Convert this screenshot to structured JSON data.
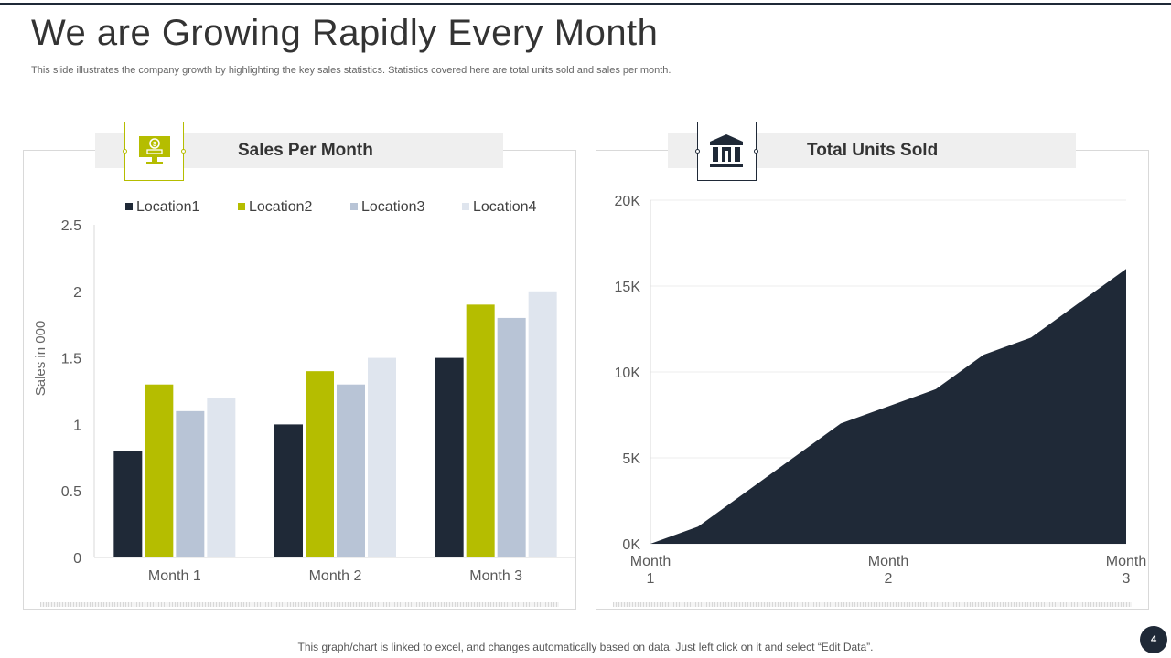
{
  "slide": {
    "title": "We are Growing Rapidly Every Month",
    "subtitle": "This slide illustrates the company growth by highlighting the key sales statistics. Statistics covered here are total units sold and sales per month.",
    "footer": "This graph/chart is linked to excel,  and changes automatically based on data. Just left click on it and select “Edit Data”.",
    "page_number": "4"
  },
  "panels": {
    "left": {
      "header": "Sales Per Month",
      "icon": "monitor-dollar-icon"
    },
    "right": {
      "header": "Total Units Sold",
      "icon": "bank-building-icon"
    }
  },
  "colors": {
    "location1": "#1f2937",
    "location2": "#b5bd00",
    "location3": "#b8c4d6",
    "location4": "#dfe5ee",
    "area": "#1f2937",
    "accent_green": "#b5bd00"
  },
  "chart_data": [
    {
      "type": "bar",
      "title": "Sales Per Month",
      "categories": [
        "Month 1",
        "Month 2",
        "Month 3"
      ],
      "series": [
        {
          "name": "Location1",
          "values": [
            0.8,
            1.0,
            1.5
          ]
        },
        {
          "name": "Location2",
          "values": [
            1.3,
            1.4,
            1.9
          ]
        },
        {
          "name": "Location3",
          "values": [
            1.1,
            1.3,
            1.8
          ]
        },
        {
          "name": "Location4",
          "values": [
            1.2,
            1.5,
            2.0
          ]
        }
      ],
      "xlabel": "",
      "ylabel": "Sales in 000",
      "ylim": [
        0,
        2.5
      ],
      "yticks": [
        "0",
        "0.5",
        "1",
        "1.5",
        "2",
        "2.5"
      ],
      "legend": "top"
    },
    {
      "type": "area",
      "title": "Total Units Sold",
      "x": [
        1,
        1.2,
        1.4,
        1.6,
        1.8,
        2.0,
        2.2,
        2.4,
        2.6,
        2.8,
        3.0
      ],
      "values": [
        0,
        1000,
        3000,
        5000,
        7000,
        8000,
        9000,
        11000,
        12000,
        14000,
        16000
      ],
      "x_tick_labels": [
        {
          "x": 1,
          "lines": [
            "Month",
            "1"
          ]
        },
        {
          "x": 2,
          "lines": [
            "Month",
            "2"
          ]
        },
        {
          "x": 3,
          "lines": [
            "Month",
            "3"
          ]
        }
      ],
      "ylim": [
        0,
        20000
      ],
      "yticks": [
        "0K",
        "5K",
        "10K",
        "15K",
        "20K"
      ],
      "ytick_values": [
        0,
        5000,
        10000,
        15000,
        20000
      ]
    }
  ]
}
